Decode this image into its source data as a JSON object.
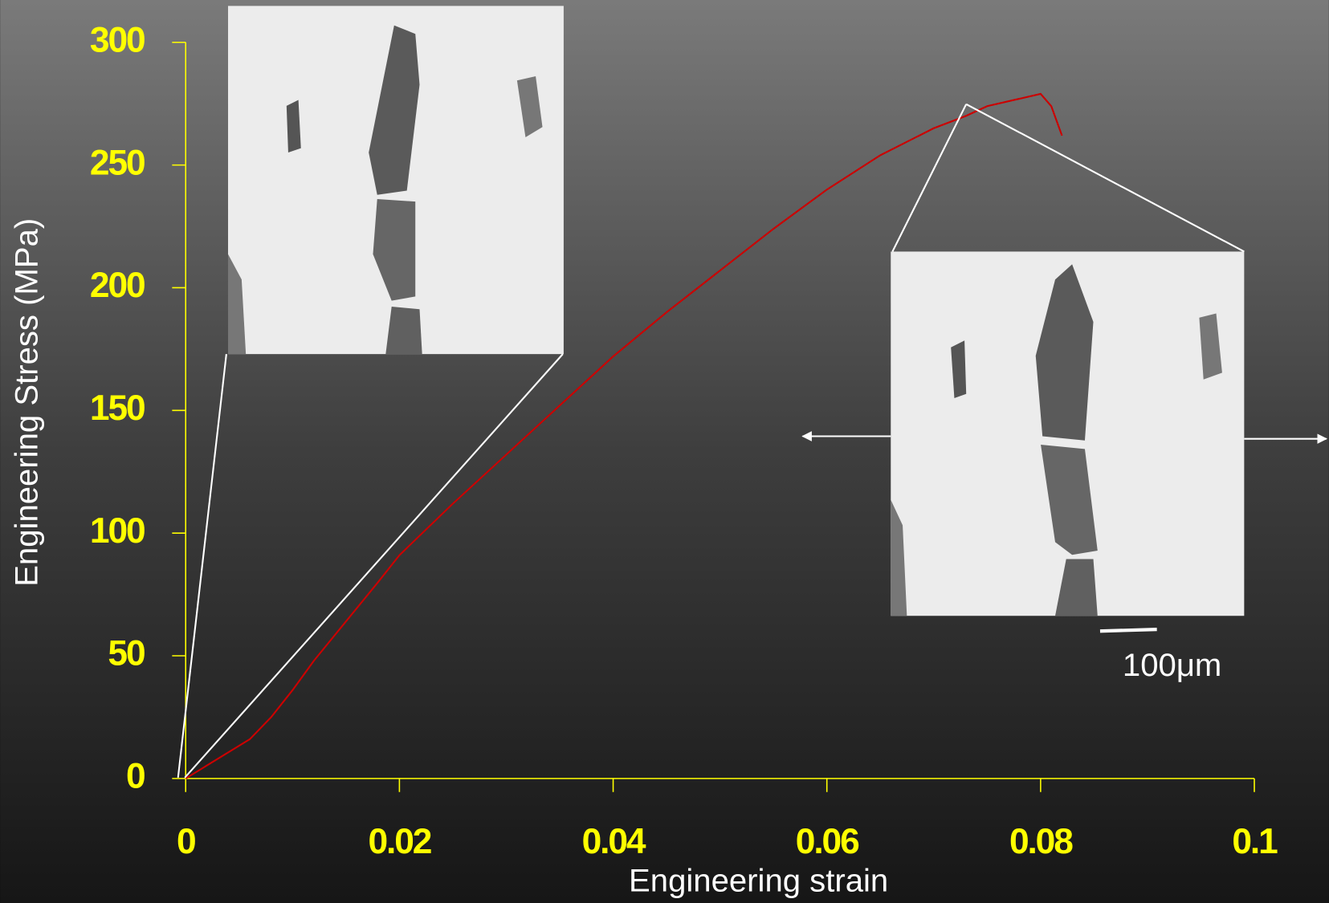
{
  "chart_data": {
    "type": "line",
    "x_label": "Engineering strain",
    "y_label": "Engineering Stress (MPa)",
    "annotation": "100μm",
    "xlim": [
      0,
      0.1
    ],
    "xticks": [
      0,
      0.02,
      0.04,
      0.06,
      0.08,
      0.1
    ],
    "ylim": [
      0,
      300
    ],
    "yticks": [
      0,
      50,
      100,
      150,
      200,
      250,
      300
    ],
    "axis_color": "#ffff00",
    "series": [
      {
        "color": "#cc0000",
        "x": [
          0,
          0.006,
          0.008,
          0.01,
          0.012,
          0.015,
          0.018,
          0.02,
          0.025,
          0.03,
          0.035,
          0.04,
          0.045,
          0.05,
          0.055,
          0.06,
          0.065,
          0.07,
          0.073,
          0.075,
          0.078,
          0.08,
          0.081,
          0.082
        ],
        "values": [
          0,
          16,
          25,
          36,
          48,
          64,
          80,
          91,
          112,
          132,
          152,
          172,
          190,
          207,
          224,
          240,
          254,
          265,
          270,
          274,
          277,
          279,
          274,
          262
        ]
      }
    ]
  }
}
